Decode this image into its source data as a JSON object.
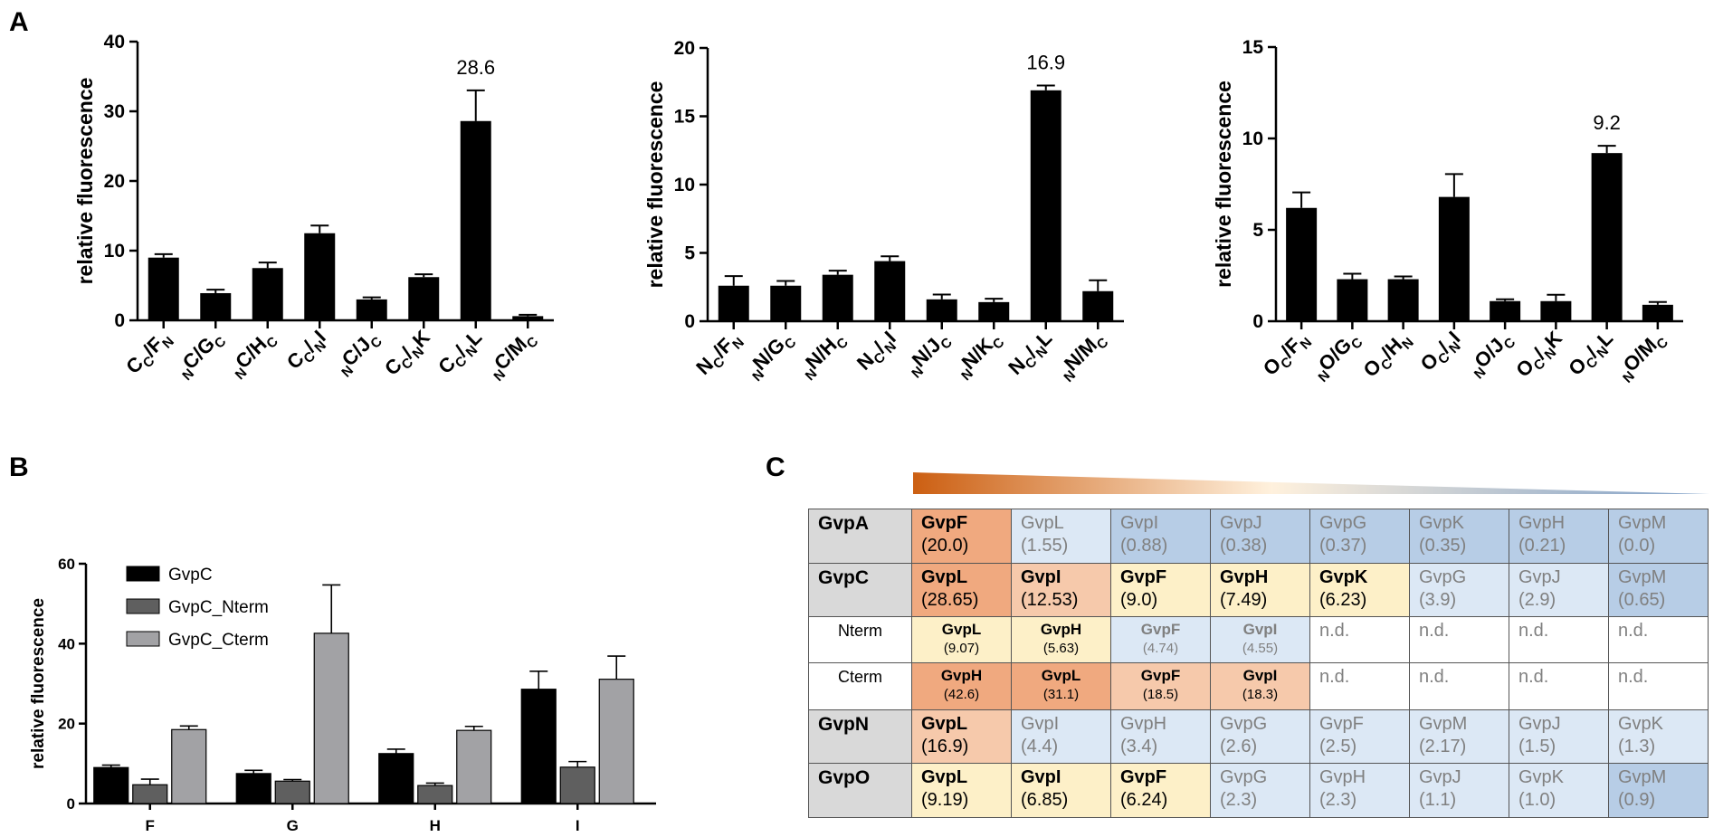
{
  "panels": {
    "a": "A",
    "b": "B",
    "c": "C"
  },
  "colors": {
    "bar_black": "#000000",
    "bar_dark_gray": "#5f5f5f",
    "bar_light_gray": "#a2a2a5",
    "orange_strong": "#f0a97f",
    "orange_light": "#f6c9ab",
    "yellow": "#fdf0c8",
    "blue_light": "#dce8f5",
    "blue_mid": "#b7cde6",
    "row_head": "#d9d9d9"
  },
  "chart_data": [
    {
      "id": "A1",
      "type": "bar",
      "ylabel": "relative fluorescence",
      "ylim": [
        0,
        40
      ],
      "yticks": [
        "0",
        "10",
        "20",
        "30",
        "40"
      ],
      "categories": [
        {
          "main": "C",
          "sub": "C",
          "rest": "/F",
          "rsub": "N"
        },
        {
          "pre": "N",
          "main": "C/G",
          "sub": "C"
        },
        {
          "pre": "N",
          "main": "C/H",
          "sub": "C"
        },
        {
          "main": "C",
          "sub": "C",
          "rest": "/",
          "rsub": "N",
          "tail": "I"
        },
        {
          "pre": "N",
          "main": "C/J",
          "sub": "C"
        },
        {
          "main": "C",
          "sub": "C",
          "rest": "/",
          "rsub": "N",
          "tail": "K"
        },
        {
          "main": "C",
          "sub": "C",
          "rest": "/",
          "rsub": "N",
          "tail": "L"
        },
        {
          "pre": "N",
          "main": "C/M",
          "sub": "C"
        }
      ],
      "values": [
        9.0,
        3.9,
        7.5,
        12.5,
        3.0,
        6.2,
        28.6,
        0.6
      ],
      "errors": [
        0.5,
        0.5,
        0.8,
        1.1,
        0.3,
        0.4,
        4.4,
        0.2
      ],
      "annotation": {
        "index": 6,
        "text": "28.6"
      }
    },
    {
      "id": "A2",
      "type": "bar",
      "ylabel": "relative fluorescence",
      "ylim": [
        0,
        20
      ],
      "yticks": [
        "0",
        "5",
        "10",
        "15",
        "20"
      ],
      "categories": [
        {
          "main": "N",
          "sub": "C",
          "rest": "/F",
          "rsub": "N"
        },
        {
          "pre": "N",
          "main": "N/G",
          "sub": "C"
        },
        {
          "pre": "N",
          "main": "N/H",
          "sub": "C"
        },
        {
          "main": "N",
          "sub": "C",
          "rest": "/",
          "rsub": "N",
          "tail": "I"
        },
        {
          "pre": "N",
          "main": "N/J",
          "sub": "C"
        },
        {
          "pre": "N",
          "main": "N/K",
          "sub": "C"
        },
        {
          "main": "N",
          "sub": "C",
          "rest": "/",
          "rsub": "N",
          "tail": "L"
        },
        {
          "pre": "N",
          "main": "N/M",
          "sub": "C"
        }
      ],
      "values": [
        2.6,
        2.6,
        3.4,
        4.4,
        1.6,
        1.4,
        16.9,
        2.2
      ],
      "errors": [
        0.7,
        0.35,
        0.3,
        0.35,
        0.35,
        0.25,
        0.35,
        0.8
      ],
      "annotation": {
        "index": 6,
        "text": "16.9"
      }
    },
    {
      "id": "A3",
      "type": "bar",
      "ylabel": "relative fluorescence",
      "ylim": [
        0,
        15
      ],
      "yticks": [
        "0",
        "5",
        "10",
        "15"
      ],
      "categories": [
        {
          "main": "O",
          "sub": "C",
          "rest": "/F",
          "rsub": "N"
        },
        {
          "pre": "N",
          "main": "O/G",
          "sub": "C"
        },
        {
          "main": "O",
          "sub": "C",
          "rest": "/H",
          "rsub": "N"
        },
        {
          "main": "O",
          "sub": "C",
          "rest": "/",
          "rsub": "N",
          "tail": "I"
        },
        {
          "pre": "N",
          "main": "O/J",
          "sub": "C"
        },
        {
          "main": "O",
          "sub": "C",
          "rest": "/",
          "rsub": "N",
          "tail": "K"
        },
        {
          "main": "O",
          "sub": "C",
          "rest": "/",
          "rsub": "N",
          "tail": "L"
        },
        {
          "pre": "N",
          "main": "O/M",
          "sub": "C"
        }
      ],
      "values": [
        6.2,
        2.3,
        2.3,
        6.8,
        1.1,
        1.1,
        9.2,
        0.9
      ],
      "errors": [
        0.85,
        0.3,
        0.15,
        1.25,
        0.1,
        0.35,
        0.4,
        0.15
      ],
      "annotation": {
        "index": 6,
        "text": "9.2"
      }
    },
    {
      "id": "B",
      "type": "bar",
      "ylabel": "relative fluorescence",
      "ylim": [
        0,
        60
      ],
      "yticks": [
        "0",
        "20",
        "40",
        "60"
      ],
      "categories": [
        "F",
        "G",
        "H",
        "I"
      ],
      "legend": {
        "position": "top-left"
      },
      "series": [
        {
          "name": "GvpC",
          "color": "#000000",
          "values": [
            9.0,
            7.5,
            12.5,
            28.6
          ],
          "errors": [
            0.6,
            0.8,
            1.1,
            4.5
          ]
        },
        {
          "name": "GvpC_Nterm",
          "color": "#5f5f5f",
          "values": [
            4.7,
            5.6,
            4.5,
            9.1
          ],
          "errors": [
            1.4,
            0.4,
            0.6,
            1.4
          ]
        },
        {
          "name": "GvpC_Cterm",
          "color": "#a2a2a5",
          "values": [
            18.5,
            42.6,
            18.3,
            31.1
          ],
          "errors": [
            0.9,
            12.1,
            1.0,
            5.8
          ]
        }
      ]
    },
    {
      "id": "C",
      "type": "table",
      "gradient": {
        "from": "#cc5f12",
        "via": "#fff1dd",
        "to": "#7e9fc7"
      },
      "rows": [
        {
          "label": "GvpA",
          "sub": false,
          "cells": [
            {
              "n": "GvpF",
              "v": "(20.0)",
              "c": "orange_strong",
              "s": "strong"
            },
            {
              "n": "GvpL",
              "v": "(1.55)",
              "c": "blue_light",
              "s": "weak"
            },
            {
              "n": "GvpI",
              "v": "(0.88)",
              "c": "blue_mid",
              "s": "weak"
            },
            {
              "n": "GvpJ",
              "v": "(0.38)",
              "c": "blue_mid",
              "s": "weak"
            },
            {
              "n": "GvpG",
              "v": "(0.37)",
              "c": "blue_mid",
              "s": "weak"
            },
            {
              "n": "GvpK",
              "v": "(0.35)",
              "c": "blue_mid",
              "s": "weak"
            },
            {
              "n": "GvpH",
              "v": "(0.21)",
              "c": "blue_mid",
              "s": "weak"
            },
            {
              "n": "GvpM",
              "v": "(0.0)",
              "c": "blue_mid",
              "s": "weak"
            }
          ]
        },
        {
          "label": "GvpC",
          "sub": false,
          "cells": [
            {
              "n": "GvpL",
              "v": "(28.65)",
              "c": "orange_strong",
              "s": "strong"
            },
            {
              "n": "GvpI",
              "v": "(12.53)",
              "c": "orange_light",
              "s": "strong"
            },
            {
              "n": "GvpF",
              "v": "(9.0)",
              "c": "yellow",
              "s": "strong"
            },
            {
              "n": "GvpH",
              "v": "(7.49)",
              "c": "yellow",
              "s": "strong"
            },
            {
              "n": "GvpK",
              "v": "(6.23)",
              "c": "yellow",
              "s": "strong"
            },
            {
              "n": "GvpG",
              "v": "(3.9)",
              "c": "blue_light",
              "s": "weak"
            },
            {
              "n": "GvpJ",
              "v": "(2.9)",
              "c": "blue_light",
              "s": "weak"
            },
            {
              "n": "GvpM",
              "v": "(0.65)",
              "c": "blue_mid",
              "s": "weak"
            }
          ]
        },
        {
          "label": "Nterm",
          "sub": true,
          "cells": [
            {
              "n": "GvpL",
              "v": "(9.07)",
              "c": "yellow",
              "s": "strong small"
            },
            {
              "n": "GvpH",
              "v": "(5.63)",
              "c": "yellow",
              "s": "strong small"
            },
            {
              "n": "GvpF",
              "v": "(4.74)",
              "c": "blue_light",
              "s": "weak small"
            },
            {
              "n": "GvpI",
              "v": "(4.55)",
              "c": "blue_light",
              "s": "weak small"
            },
            {
              "n": "n.d.",
              "v": "",
              "c": "",
              "s": "nd"
            },
            {
              "n": "n.d.",
              "v": "",
              "c": "",
              "s": "nd"
            },
            {
              "n": "n.d.",
              "v": "",
              "c": "",
              "s": "nd"
            },
            {
              "n": "n.d.",
              "v": "",
              "c": "",
              "s": "nd"
            }
          ]
        },
        {
          "label": "Cterm",
          "sub": true,
          "cells": [
            {
              "n": "GvpH",
              "v": "(42.6)",
              "c": "orange_strong",
              "s": "strong small"
            },
            {
              "n": "GvpL",
              "v": "(31.1)",
              "c": "orange_strong",
              "s": "strong small"
            },
            {
              "n": "GvpF",
              "v": "(18.5)",
              "c": "orange_light",
              "s": "strong small"
            },
            {
              "n": "GvpI",
              "v": "(18.3)",
              "c": "orange_light",
              "s": "strong small"
            },
            {
              "n": "n.d.",
              "v": "",
              "c": "",
              "s": "nd"
            },
            {
              "n": "n.d.",
              "v": "",
              "c": "",
              "s": "nd"
            },
            {
              "n": "n.d.",
              "v": "",
              "c": "",
              "s": "nd"
            },
            {
              "n": "n.d.",
              "v": "",
              "c": "",
              "s": "nd"
            }
          ]
        },
        {
          "label": "GvpN",
          "sub": false,
          "cells": [
            {
              "n": "GvpL",
              "v": "(16.9)",
              "c": "orange_light",
              "s": "strong"
            },
            {
              "n": "GvpI",
              "v": "(4.4)",
              "c": "blue_light",
              "s": "weak"
            },
            {
              "n": "GvpH",
              "v": "(3.4)",
              "c": "blue_light",
              "s": "weak"
            },
            {
              "n": "GvpG",
              "v": "(2.6)",
              "c": "blue_light",
              "s": "weak"
            },
            {
              "n": "GvpF",
              "v": "(2.5)",
              "c": "blue_light",
              "s": "weak"
            },
            {
              "n": "GvpM",
              "v": "(2.17)",
              "c": "blue_light",
              "s": "weak"
            },
            {
              "n": "GvpJ",
              "v": "(1.5)",
              "c": "blue_light",
              "s": "weak"
            },
            {
              "n": "GvpK",
              "v": "(1.3)",
              "c": "blue_light",
              "s": "weak"
            }
          ]
        },
        {
          "label": "GvpO",
          "sub": false,
          "cells": [
            {
              "n": "GvpL",
              "v": "(9.19)",
              "c": "yellow",
              "s": "strong"
            },
            {
              "n": "GvpI",
              "v": "(6.85)",
              "c": "yellow",
              "s": "strong"
            },
            {
              "n": "GvpF",
              "v": "(6.24)",
              "c": "yellow",
              "s": "strong"
            },
            {
              "n": "GvpG",
              "v": "(2.3)",
              "c": "blue_light",
              "s": "weak"
            },
            {
              "n": "GvpH",
              "v": "(2.3)",
              "c": "blue_light",
              "s": "weak"
            },
            {
              "n": "GvpJ",
              "v": "(1.1)",
              "c": "blue_light",
              "s": "weak"
            },
            {
              "n": "GvpK",
              "v": "(1.0)",
              "c": "blue_light",
              "s": "weak"
            },
            {
              "n": "GvpM",
              "v": "(0.9)",
              "c": "blue_mid",
              "s": "weak"
            }
          ]
        }
      ]
    }
  ]
}
